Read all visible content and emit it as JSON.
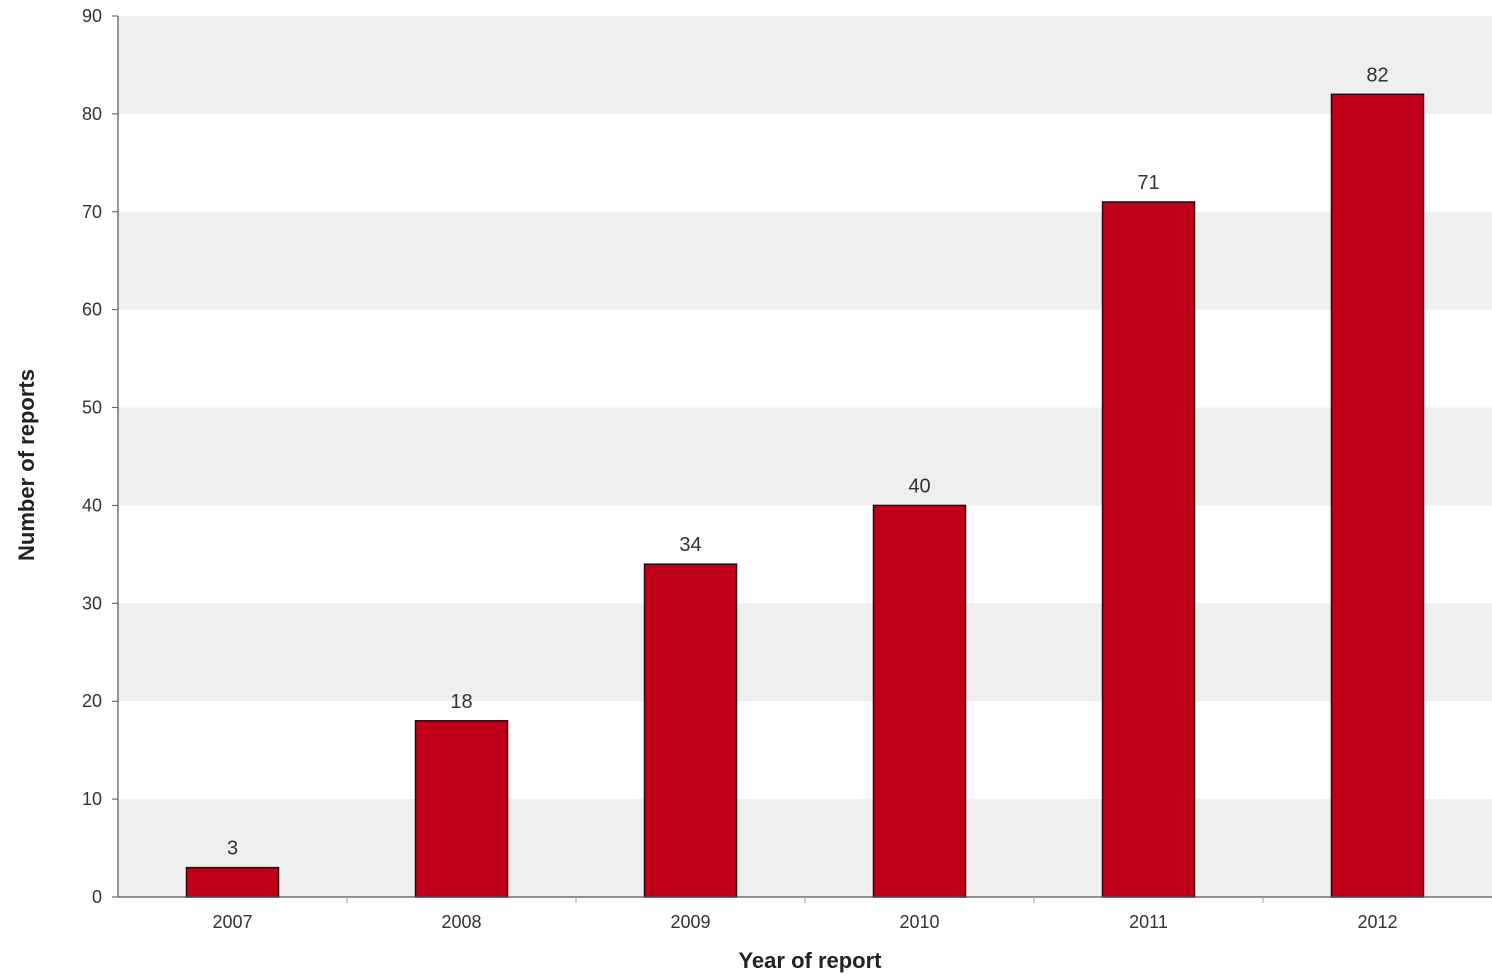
{
  "chart_data": {
    "type": "bar",
    "title": "",
    "xlabel": "Year of report",
    "ylabel": "Number of reports",
    "categories": [
      "2007",
      "2008",
      "2009",
      "2010",
      "2011",
      "2012"
    ],
    "values": [
      3,
      18,
      34,
      40,
      71,
      82
    ],
    "data_labels": [
      "3",
      "18",
      "34",
      "40",
      "71",
      "82"
    ],
    "ylim": [
      0,
      90
    ],
    "yticks": [
      0,
      10,
      20,
      30,
      40,
      50,
      60,
      70,
      80,
      90
    ],
    "ytick_labels": [
      "0",
      "10",
      "20",
      "30",
      "40",
      "50",
      "60",
      "70",
      "80",
      "90"
    ],
    "grid": "alternating horizontal bands",
    "legend": "none",
    "colors": {
      "bar_fill": "#c0001a",
      "bar_stroke": "#3a0008",
      "band": "#efefef",
      "axis": "#555555",
      "text": "#333333"
    }
  }
}
